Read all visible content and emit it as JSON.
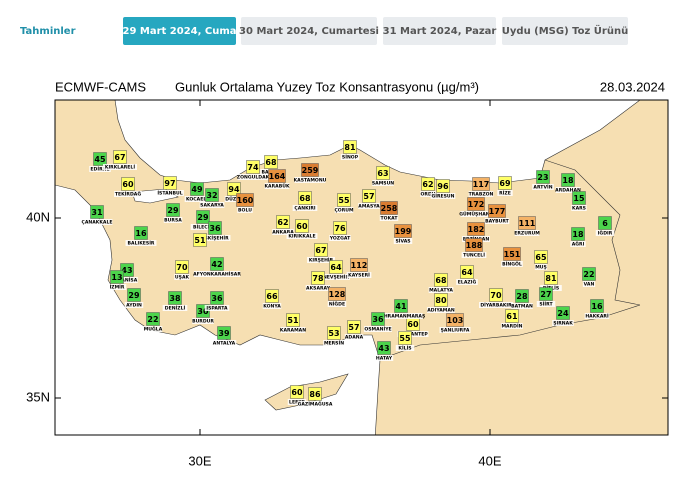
{
  "tabs": {
    "label": "Tahminler",
    "items": [
      "29 Mart 2024, Cuma",
      "30 Mart 2024, Cumartesi",
      "31 Mart 2024, Pazar",
      "Uydu (MSG) Toz Ürünü"
    ]
  },
  "map": {
    "title_left": "ECMWF-CAMS",
    "title_center": "Gunluk Ortalama Yuzey Toz Konsantrasyonu (µg/m³)",
    "date": "28.03.2024",
    "lat_labels": [
      "40N",
      "35N"
    ],
    "lon_labels": [
      "30E",
      "40E"
    ],
    "cities": [
      {
        "name": "EDİRNE",
        "value": 45,
        "color": "#4cd44c"
      },
      {
        "name": "KIRKLARELİ",
        "value": 67,
        "color": "#ffff66"
      },
      {
        "name": "TEKİRDAĞ",
        "value": 60,
        "color": "#ffff66"
      },
      {
        "name": "İSTANBUL",
        "value": 97,
        "color": "#ffff66"
      },
      {
        "name": "KOCAELİ",
        "value": 49,
        "color": "#4cd44c"
      },
      {
        "name": "SAKARYA",
        "value": 32,
        "color": "#4cd44c"
      },
      {
        "name": "DÜZCE",
        "value": 94,
        "color": "#ffff66"
      },
      {
        "name": "ZONGULDAK",
        "value": 74,
        "color": "#ffff66"
      },
      {
        "name": "BARTIN",
        "value": 68,
        "color": "#ffff66"
      },
      {
        "name": "KARABÜK",
        "value": 164,
        "color": "#e8913e"
      },
      {
        "name": "KASTAMONU",
        "value": 259,
        "color": "#d97c32"
      },
      {
        "name": "SİNOP",
        "value": 81,
        "color": "#ffff66"
      },
      {
        "name": "SAMSUN",
        "value": 63,
        "color": "#ffff66"
      },
      {
        "name": "ORDU",
        "value": 62,
        "color": "#ffff66"
      },
      {
        "name": "GİRESUN",
        "value": 96,
        "color": "#ffff66"
      },
      {
        "name": "TRABZON",
        "value": 117,
        "color": "#f4b266"
      },
      {
        "name": "RİZE",
        "value": 69,
        "color": "#ffff66"
      },
      {
        "name": "ARTVİN",
        "value": 23,
        "color": "#4cd44c"
      },
      {
        "name": "ARDAHAN",
        "value": 18,
        "color": "#4cd44c"
      },
      {
        "name": "KARS",
        "value": 15,
        "color": "#4cd44c"
      },
      {
        "name": "IĞDIR",
        "value": 6,
        "color": "#4cd44c"
      },
      {
        "name": "AĞRI",
        "value": 18,
        "color": "#4cd44c"
      },
      {
        "name": "ÇANAKKALE",
        "value": 31,
        "color": "#4cd44c"
      },
      {
        "name": "BURSA",
        "value": 29,
        "color": "#4cd44c"
      },
      {
        "name": "BİLECİK",
        "value": 29,
        "color": "#4cd44c"
      },
      {
        "name": "ESKİŞEHİR",
        "value": 36,
        "color": "#4cd44c"
      },
      {
        "name": null,
        "value": 51,
        "color": "#ffff66"
      },
      {
        "name": "BOLU",
        "value": 160,
        "color": "#e8913e"
      },
      {
        "name": "ANKARA",
        "value": 62,
        "color": "#ffff66"
      },
      {
        "name": "ÇANKIRI",
        "value": 68,
        "color": "#ffff66"
      },
      {
        "name": "KIRIKKALE",
        "value": 60,
        "color": "#ffff66"
      },
      {
        "name": "ÇORUM",
        "value": 55,
        "color": "#ffff66"
      },
      {
        "name": "AMASYA",
        "value": 57,
        "color": "#ffff66"
      },
      {
        "name": "YOZGAT",
        "value": 76,
        "color": "#ffff66"
      },
      {
        "name": "TOKAT",
        "value": 258,
        "color": "#d97c32"
      },
      {
        "name": "SİVAS",
        "value": 199,
        "color": "#e8913e"
      },
      {
        "name": "GÜMÜŞHANE",
        "value": 172,
        "color": "#e8913e"
      },
      {
        "name": "BAYBURT",
        "value": 177,
        "color": "#e8913e"
      },
      {
        "name": "ERZİNCAN",
        "value": 182,
        "color": "#e8913e"
      },
      {
        "name": "ERZURUM",
        "value": 111,
        "color": "#f4b266"
      },
      {
        "name": "TUNCELİ",
        "value": 188,
        "color": "#e8913e"
      },
      {
        "name": "BİNGÖL",
        "value": 151,
        "color": "#e8913e"
      },
      {
        "name": "MUŞ",
        "value": 65,
        "color": "#ffff66"
      },
      {
        "name": "BİTLİS",
        "value": 81,
        "color": "#ffff66"
      },
      {
        "name": "VAN",
        "value": 22,
        "color": "#4cd44c"
      },
      {
        "name": "BALIKESİR",
        "value": 16,
        "color": "#4cd44c"
      },
      {
        "name": "MANİSA",
        "value": 43,
        "color": "#4cd44c"
      },
      {
        "name": "İZMİR",
        "value": 13,
        "color": "#4cd44c"
      },
      {
        "name": "UŞAK",
        "value": 70,
        "color": "#ffff66"
      },
      {
        "name": "AFYONKARAHİSAR",
        "value": 42,
        "color": "#4cd44c"
      },
      {
        "name": "KIRŞEHİR",
        "value": 67,
        "color": "#ffff66"
      },
      {
        "name": "NEVŞEHİR",
        "value": 64,
        "color": "#ffff66"
      },
      {
        "name": "KAYSERİ",
        "value": 112,
        "color": "#f4b266"
      },
      {
        "name": "AKSARAY",
        "value": 78,
        "color": "#ffff66"
      },
      {
        "name": "NİĞDE",
        "value": 128,
        "color": "#f4b266"
      },
      {
        "name": "MALATYA",
        "value": 68,
        "color": "#ffff66"
      },
      {
        "name": "ELAZIĞ",
        "value": 64,
        "color": "#ffff66"
      },
      {
        "name": "ADIYAMAN",
        "value": 80,
        "color": "#ffff66"
      },
      {
        "name": "DİYARBAKIR",
        "value": 70,
        "color": "#ffff66"
      },
      {
        "name": "BATMAN",
        "value": 28,
        "color": "#4cd44c"
      },
      {
        "name": "SİİRT",
        "value": 27,
        "color": "#4cd44c"
      },
      {
        "name": "ŞIRNAK",
        "value": 24,
        "color": "#4cd44c"
      },
      {
        "name": "HAKKARİ",
        "value": 16,
        "color": "#4cd44c"
      },
      {
        "name": "MARDİN",
        "value": 61,
        "color": "#ffff66"
      },
      {
        "name": "ŞANLIURFA",
        "value": 103,
        "color": "#f4b266"
      },
      {
        "name": "GAZİANTEP",
        "value": 60,
        "color": "#ffff66"
      },
      {
        "name": "KAHRAMANMARAŞ",
        "value": 41,
        "color": "#4cd44c"
      },
      {
        "name": "KİLİS",
        "value": 55,
        "color": "#ffff66"
      },
      {
        "name": "OSMANİYE",
        "value": 36,
        "color": "#4cd44c"
      },
      {
        "name": "HATAY",
        "value": 43,
        "color": "#4cd44c"
      },
      {
        "name": "ADANA",
        "value": 57,
        "color": "#ffff66"
      },
      {
        "name": "MERSİN",
        "value": 53,
        "color": "#ffff66"
      },
      {
        "name": "KARAMAN",
        "value": 51,
        "color": "#ffff66"
      },
      {
        "name": "KONYA",
        "value": 66,
        "color": "#ffff66"
      },
      {
        "name": "AYDIN",
        "value": 29,
        "color": "#4cd44c"
      },
      {
        "name": "DENİZLİ",
        "value": 38,
        "color": "#4cd44c"
      },
      {
        "name": "BURDUR",
        "value": 30,
        "color": "#4cd44c"
      },
      {
        "name": "ISPARTA",
        "value": 36,
        "color": "#4cd44c"
      },
      {
        "name": "MUĞLA",
        "value": 22,
        "color": "#4cd44c"
      },
      {
        "name": "ANTALYA",
        "value": 39,
        "color": "#4cd44c"
      },
      {
        "name": "LEFKE",
        "value": 60,
        "color": "#ffff66"
      },
      {
        "name": "GAZİMAĞUSA",
        "value": 86,
        "color": "#ffff66"
      }
    ]
  }
}
